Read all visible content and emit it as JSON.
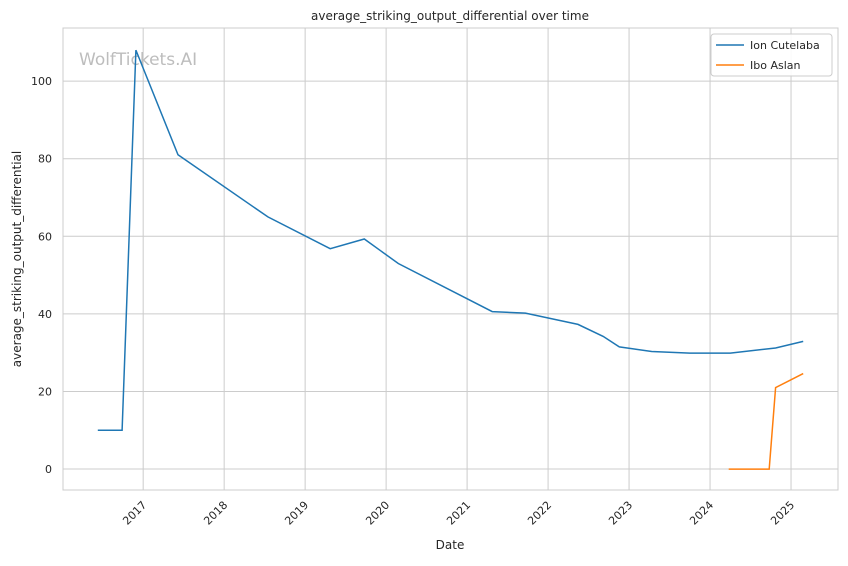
{
  "chart_data": {
    "type": "line",
    "title": "average_striking_output_differential over time",
    "xlabel": "Date",
    "ylabel": "average_striking_output_differential",
    "watermark": "WolfTickets.AI",
    "xlim": [
      2016.01,
      2025.58
    ],
    "ylim": [
      -5.4,
      113.7
    ],
    "xticks": [
      2017,
      2018,
      2019,
      2020,
      2021,
      2022,
      2023,
      2024,
      2025
    ],
    "xtick_labels": [
      "2017",
      "2018",
      "2019",
      "2020",
      "2021",
      "2022",
      "2023",
      "2024",
      "2025"
    ],
    "yticks": [
      0,
      20,
      40,
      60,
      80,
      100
    ],
    "ytick_labels": [
      "0",
      "20",
      "40",
      "60",
      "80",
      "100"
    ],
    "grid": true,
    "legend_position": "top-right",
    "series": [
      {
        "name": "Ion Cutelaba",
        "color": "#1f77b4",
        "x": [
          2016.44,
          2016.74,
          2016.91,
          2017.43,
          2018.54,
          2019.31,
          2019.73,
          2020.15,
          2021.31,
          2021.72,
          2022.37,
          2022.68,
          2022.88,
          2023.28,
          2023.75,
          2024.25,
          2024.81,
          2025.15
        ],
        "y": [
          10.0,
          10.0,
          108.0,
          81.0,
          65.0,
          56.8,
          59.3,
          53.0,
          40.6,
          40.2,
          37.3,
          34.2,
          31.5,
          30.3,
          29.9,
          29.9,
          31.2,
          32.9
        ]
      },
      {
        "name": "Ibo Aslan",
        "color": "#ff7f0e",
        "x": [
          2024.23,
          2024.73,
          2024.81,
          2025.15
        ],
        "y": [
          0.0,
          0.0,
          21.0,
          24.6
        ]
      }
    ]
  }
}
